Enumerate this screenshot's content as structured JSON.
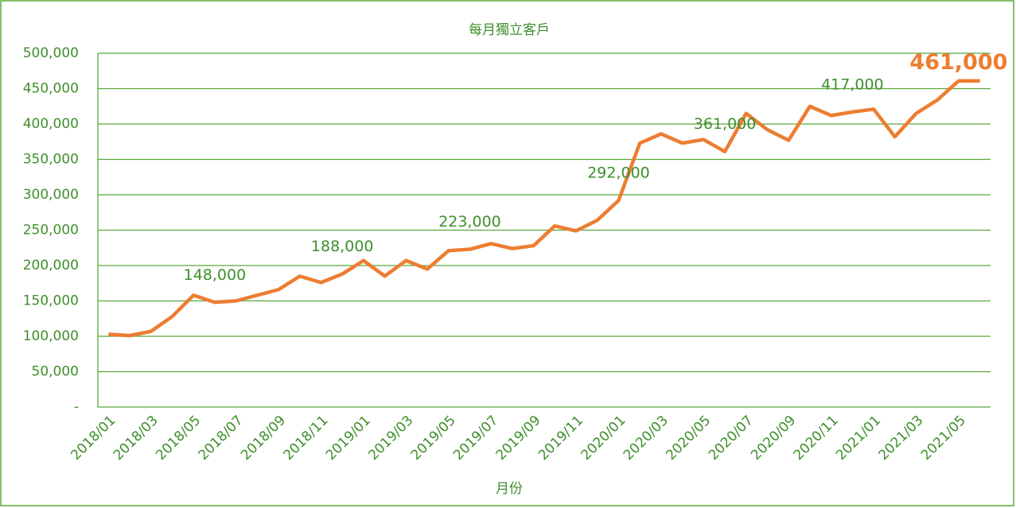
{
  "chart_data": {
    "type": "line",
    "title": "每月獨立客戶",
    "x_label": "月份",
    "categories": [
      "2018/01",
      null,
      "2018/03",
      null,
      "2018/05",
      null,
      "2018/07",
      null,
      "2018/09",
      null,
      "2018/11",
      null,
      "2019/01",
      null,
      "2019/03",
      null,
      "2019/05",
      null,
      "2019/07",
      null,
      "2019/09",
      null,
      "2019/11",
      null,
      "2020/01",
      null,
      "2020/03",
      null,
      "2020/05",
      null,
      "2020/07",
      null,
      "2020/09",
      null,
      "2020/11",
      null,
      "2021/01",
      null,
      "2021/03",
      null,
      "2021/05",
      null
    ],
    "series": [
      {
        "name": "每月獨立客戶",
        "color": "#ed7d31",
        "values": [
          103000,
          101000,
          107000,
          128000,
          158000,
          148000,
          150000,
          158000,
          166000,
          185000,
          176000,
          188000,
          207000,
          185000,
          207000,
          195000,
          221000,
          223000,
          231000,
          224000,
          228000,
          256000,
          249000,
          264000,
          292000,
          373000,
          386000,
          373000,
          378000,
          361000,
          415000,
          392000,
          377000,
          425000,
          412000,
          417000,
          421000,
          382000,
          415000,
          434000,
          461000,
          461000
        ],
        "value_labels": [
          null,
          null,
          null,
          null,
          null,
          "148,000",
          null,
          null,
          null,
          null,
          null,
          "188,000",
          null,
          null,
          null,
          null,
          null,
          "223,000",
          null,
          null,
          null,
          null,
          null,
          null,
          "292,000",
          null,
          null,
          null,
          null,
          "361,000",
          null,
          null,
          null,
          null,
          null,
          "417,000",
          null,
          null,
          null,
          null,
          "461,000",
          null
        ]
      }
    ],
    "ylim": [
      0,
      500000
    ],
    "yticks": [
      {
        "value": 0,
        "label": "-"
      },
      {
        "value": 50000,
        "label": "50,000"
      },
      {
        "value": 100000,
        "label": "100,000"
      },
      {
        "value": 150000,
        "label": "150,000"
      },
      {
        "value": 200000,
        "label": "200,000"
      },
      {
        "value": 250000,
        "label": "250,000"
      },
      {
        "value": 300000,
        "label": "300,000"
      },
      {
        "value": 350000,
        "label": "350,000"
      },
      {
        "value": 400000,
        "label": "400,000"
      },
      {
        "value": 450000,
        "label": "450,000"
      },
      {
        "value": 500000,
        "label": "500,000"
      }
    ],
    "grid": true,
    "text_color": "#3e8f2c",
    "grid_color": "#5aa83c"
  }
}
